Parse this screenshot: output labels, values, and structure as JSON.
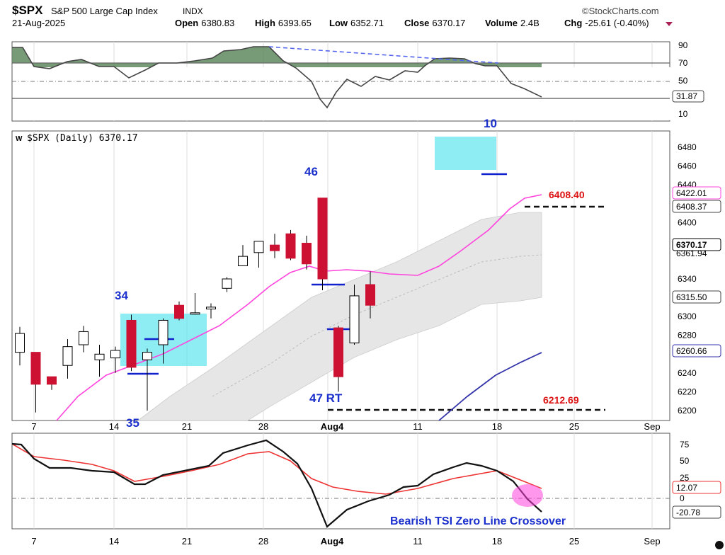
{
  "header": {
    "symbol": "$SPX",
    "name": "S&P 500 Large Cap Index",
    "exchange": "INDX",
    "date": "21-Aug-2025",
    "brand": "©StockCharts.com",
    "open_label": "Open",
    "open": "6380.83",
    "high_label": "High",
    "high": "6393.65",
    "low_label": "Low",
    "low": "6352.71",
    "close_label": "Close",
    "close": "6370.17",
    "volume_label": "Volume",
    "volume": "2.4B",
    "chg_label": "Chg",
    "chg": "-25.61 (-0.40%)"
  },
  "price_legend": "$SPX (Daily) 6370.17",
  "colors": {
    "up": "#ffffff",
    "down": "#cc1133",
    "wick": "#000000",
    "highlight_fill": "#5ee6ee",
    "pink": "#ff44dd",
    "navy": "#3333aa",
    "red_text": "#dd1111",
    "count_blue": "#1a2fcc",
    "band_fill": "#e6e6e6"
  },
  "chart_data": {
    "type": "candlestick",
    "x_tick_labels": [
      "7",
      "14",
      "21",
      "28",
      "Aug4",
      "11",
      "18",
      "25",
      "Sep"
    ],
    "candles": [
      {
        "o": 6262,
        "h": 6289,
        "l": 6248,
        "c": 6282
      },
      {
        "o": 6262,
        "h": 6262,
        "l": 6198,
        "c": 6228
      },
      {
        "o": 6236,
        "h": 6236,
        "l": 6222,
        "c": 6228
      },
      {
        "o": 6248,
        "h": 6276,
        "l": 6234,
        "c": 6268
      },
      {
        "o": 6270,
        "h": 6290,
        "l": 6262,
        "c": 6284
      },
      {
        "o": 6254,
        "h": 6270,
        "l": 6236,
        "c": 6260
      },
      {
        "o": 6256,
        "h": 6268,
        "l": 6240,
        "c": 6264
      },
      {
        "o": 6296,
        "h": 6302,
        "l": 6242,
        "c": 6246
      },
      {
        "o": 6254,
        "h": 6266,
        "l": 6200,
        "c": 6262
      },
      {
        "o": 6270,
        "h": 6298,
        "l": 6250,
        "c": 6296
      },
      {
        "o": 6312,
        "h": 6316,
        "l": 6296,
        "c": 6298
      },
      {
        "o": 6304,
        "h": 6325,
        "l": 6302,
        "c": 6304
      },
      {
        "o": 6308,
        "h": 6314,
        "l": 6298,
        "c": 6310
      },
      {
        "o": 6330,
        "h": 6342,
        "l": 6326,
        "c": 6340
      },
      {
        "o": 6354,
        "h": 6376,
        "l": 6354,
        "c": 6364
      },
      {
        "o": 6368,
        "h": 6380,
        "l": 6352,
        "c": 6380
      },
      {
        "o": 6376,
        "h": 6388,
        "l": 6362,
        "c": 6370
      },
      {
        "o": 6388,
        "h": 6392,
        "l": 6360,
        "c": 6362
      },
      {
        "o": 6378,
        "h": 6386,
        "l": 6350,
        "c": 6356
      },
      {
        "o": 6426,
        "h": 6426,
        "l": 6328,
        "c": 6340
      },
      {
        "o": 6288,
        "h": 6290,
        "l": 6220,
        "c": 6236
      },
      {
        "o": 6272,
        "h": 6334,
        "l": 6270,
        "c": 6322
      },
      {
        "o": 6334,
        "h": 6348,
        "l": 6298,
        "c": 6312
      }
    ]
  }
}
